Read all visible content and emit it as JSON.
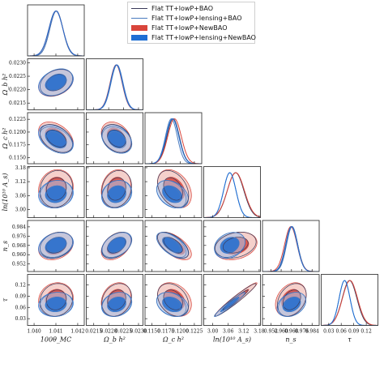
{
  "chart_data": {
    "type": "corner",
    "parameters": [
      {
        "id": "theta",
        "label": "100θ_MC",
        "range": [
          1.0397,
          1.0423
        ],
        "ticks": [
          "1.040",
          "1.041",
          "1.042"
        ],
        "tick_values": [
          1.04,
          1.041,
          1.042
        ]
      },
      {
        "id": "obh2",
        "label": "Ω_b h²",
        "range": [
          0.02125,
          0.02315
        ],
        "ticks": [
          "0.0215",
          "0.0220",
          "0.0225",
          "0.0230"
        ],
        "tick_values": [
          0.0215,
          0.022,
          0.0225,
          0.023
        ]
      },
      {
        "id": "och2",
        "label": "Ω_c h²",
        "range": [
          0.1138,
          0.1238
        ],
        "ticks": [
          "0.1150",
          "0.1175",
          "0.1200",
          "0.1225"
        ],
        "tick_values": [
          0.115,
          0.1175,
          0.12,
          0.1225
        ]
      },
      {
        "id": "lnAs",
        "label": "ln(10¹⁰ A_s)",
        "range": [
          2.965,
          3.185
        ],
        "ticks": [
          "3.00",
          "3.06",
          "3.12",
          "3.18"
        ],
        "tick_values": [
          3.0,
          3.06,
          3.12,
          3.18
        ]
      },
      {
        "id": "ns",
        "label": "n_s",
        "range": [
          0.9455,
          0.9895
        ],
        "ticks": [
          "0.952",
          "0.960",
          "0.968",
          "0.976",
          "0.984"
        ],
        "tick_values": [
          0.952,
          0.96,
          0.968,
          0.976,
          0.984
        ]
      },
      {
        "id": "tau",
        "label": "τ",
        "range": [
          0.012,
          0.148
        ],
        "ticks": [
          "0.03",
          "0.06",
          "0.09",
          "0.12"
        ],
        "tick_values": [
          0.03,
          0.06,
          0.09,
          0.12
        ]
      }
    ],
    "legend_position": "top-right",
    "series": [
      {
        "name": "Flat TT+lowP+BAO",
        "style": "line",
        "color": "#3a3a5a",
        "mean": [
          1.04102,
          0.02227,
          0.11875,
          3.0885,
          0.9683,
          0.08
        ],
        "sigma": [
          0.0003,
          0.0002,
          0.0011,
          0.032,
          0.0045,
          0.0175
        ]
      },
      {
        "name": "Flat TT+lowP+lensing+BAO",
        "style": "line",
        "color": "#4a7bbf",
        "mean": [
          1.04102,
          0.02228,
          0.11845,
          3.066,
          0.9685,
          0.068
        ],
        "sigma": [
          0.0003,
          0.0002,
          0.00105,
          0.024,
          0.0043,
          0.013
        ]
      },
      {
        "name": "Flat TT+lowP+NewBAO",
        "style": "filled",
        "color": "#d9453b",
        "light_color": "#eeb1a9",
        "mean": [
          1.041,
          0.02225,
          0.119,
          3.0895,
          0.9675,
          0.081
        ],
        "sigma": [
          0.00032,
          0.0002,
          0.0012,
          0.033,
          0.0048,
          0.018
        ]
      },
      {
        "name": "Flat TT+lowP+lensing+NewBAO",
        "style": "filled",
        "color": "#1f6fd4",
        "light_color": "#a6c0e6",
        "mean": [
          1.041,
          0.02226,
          0.11865,
          3.066,
          0.968,
          0.068
        ],
        "sigma": [
          0.00032,
          0.0002,
          0.00112,
          0.024,
          0.0045,
          0.013
        ]
      }
    ],
    "correlations": [
      [
        "theta",
        "obh2",
        0.3
      ],
      [
        "theta",
        "och2",
        -0.4
      ],
      [
        "theta",
        "lnAs",
        0.1
      ],
      [
        "theta",
        "ns",
        0.25
      ],
      [
        "theta",
        "tau",
        0.1
      ],
      [
        "obh2",
        "och2",
        -0.3
      ],
      [
        "obh2",
        "lnAs",
        0.15
      ],
      [
        "obh2",
        "ns",
        0.4
      ],
      [
        "obh2",
        "tau",
        0.2
      ],
      [
        "och2",
        "lnAs",
        -0.35
      ],
      [
        "och2",
        "ns",
        -0.6
      ],
      [
        "och2",
        "tau",
        -0.3
      ],
      [
        "lnAs",
        "ns",
        0.25
      ],
      [
        "lnAs",
        "tau",
        0.97
      ],
      [
        "ns",
        "tau",
        0.3
      ]
    ]
  }
}
